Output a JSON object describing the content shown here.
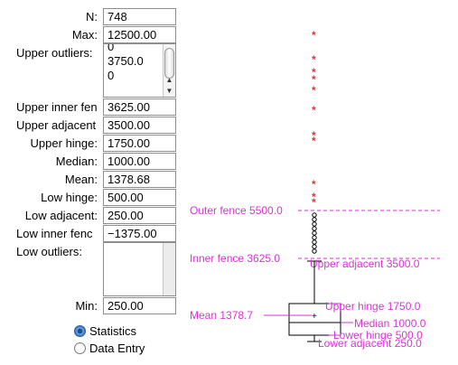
{
  "stats": {
    "n": {
      "label": "N:",
      "value": "748"
    },
    "max": {
      "label": "Max:",
      "value": "12500.00"
    },
    "upper_outliers": {
      "label": "Upper outliers:",
      "value": "0\n3750.0\n0"
    },
    "upper_inner_fence": {
      "label": "Upper inner fen",
      "value": "3625.00"
    },
    "upper_adjacent": {
      "label": "Upper adjacent",
      "value": "3500.00"
    },
    "upper_hinge": {
      "label": "Upper hinge:",
      "value": "1750.00"
    },
    "median": {
      "label": "Median:",
      "value": "1000.00"
    },
    "mean": {
      "label": "Mean:",
      "value": "1378.68"
    },
    "low_hinge": {
      "label": "Low hinge:",
      "value": "500.00"
    },
    "low_adjacent": {
      "label": "Low adjacent:",
      "value": "250.00"
    },
    "low_inner_fence": {
      "label": "Low inner fenc",
      "value": "−1375.00"
    },
    "low_outliers": {
      "label": "Low outliers:",
      "value": ""
    },
    "min": {
      "label": "Min:",
      "value": "250.00"
    }
  },
  "mode": {
    "options": [
      "Statistics",
      "Data Entry"
    ],
    "selected": "Statistics"
  },
  "plot": {
    "color_markers": "#d63a3a",
    "color_annotation": "#d633d6",
    "labels": {
      "outer_fence": "Outer fence 5500.0",
      "inner_fence": "Inner fence 3625.0",
      "upper_adjacent": "Upper adjacent 3500.0",
      "upper_hinge": "Upper hinge 1750.0",
      "mean": "Mean 1378.7",
      "median": "Median 1000.0",
      "lower_hinge": "Lower hinge 500.0",
      "lower_adjacent": "Lower adjacent 250.0"
    },
    "outlier_marker": "*"
  }
}
